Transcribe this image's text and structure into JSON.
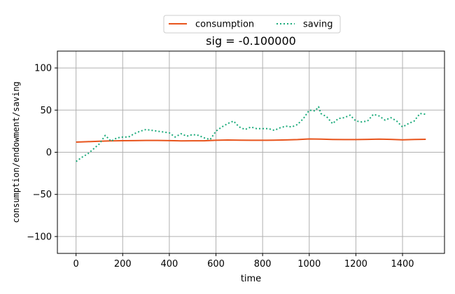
{
  "chart_data": {
    "type": "line",
    "title": "sig = -0.100000",
    "xlabel": "time",
    "ylabel": "consumption/endowment/saving",
    "xlim": [
      -80,
      1580
    ],
    "ylim": [
      -120,
      120
    ],
    "xticks": [
      0,
      200,
      400,
      600,
      800,
      1000,
      1200,
      1400
    ],
    "yticks": [
      -100,
      -50,
      0,
      50,
      100
    ],
    "grid": true,
    "legend_position": "top-center",
    "series": [
      {
        "name": "consumption",
        "style": "solid",
        "color": "#e8541c",
        "x": [
          0,
          50,
          100,
          150,
          200,
          250,
          300,
          350,
          400,
          450,
          500,
          550,
          600,
          650,
          700,
          750,
          800,
          850,
          900,
          950,
          1000,
          1050,
          1100,
          1150,
          1200,
          1250,
          1300,
          1350,
          1400,
          1450,
          1500
        ],
        "y": [
          12,
          12.5,
          13,
          13.5,
          13.7,
          13.8,
          14,
          14,
          13.8,
          13.5,
          13.6,
          13.6,
          14.2,
          14.5,
          14.3,
          14.2,
          14.2,
          14.3,
          14.6,
          15,
          15.8,
          15.5,
          15.2,
          15,
          15,
          15.3,
          15.5,
          15.3,
          14.8,
          15.2,
          15.4
        ]
      },
      {
        "name": "saving",
        "style": "dotted",
        "color": "#1aaa7a",
        "x": [
          0,
          25,
          50,
          75,
          100,
          125,
          140,
          150,
          175,
          200,
          225,
          250,
          275,
          300,
          325,
          350,
          375,
          400,
          425,
          450,
          475,
          500,
          525,
          550,
          575,
          600,
          625,
          650,
          675,
          700,
          725,
          750,
          775,
          800,
          825,
          850,
          875,
          900,
          925,
          950,
          975,
          1000,
          1025,
          1040,
          1050,
          1075,
          1100,
          1125,
          1150,
          1175,
          1200,
          1225,
          1250,
          1275,
          1300,
          1325,
          1350,
          1375,
          1400,
          1425,
          1450,
          1475,
          1500
        ],
        "y": [
          -11,
          -6,
          -2,
          4,
          10,
          20,
          16,
          13,
          17,
          18,
          18,
          22,
          25,
          27,
          26,
          25,
          24,
          23,
          18,
          22,
          19,
          21,
          20,
          17,
          15,
          25,
          30,
          34,
          37,
          30,
          27,
          30,
          28,
          28,
          28,
          26,
          29,
          31,
          30,
          33,
          40,
          50,
          49,
          54,
          46,
          42,
          34,
          40,
          41,
          44,
          37,
          36,
          37,
          45,
          43,
          38,
          41,
          37,
          30,
          34,
          37,
          46,
          45
        ]
      }
    ]
  }
}
